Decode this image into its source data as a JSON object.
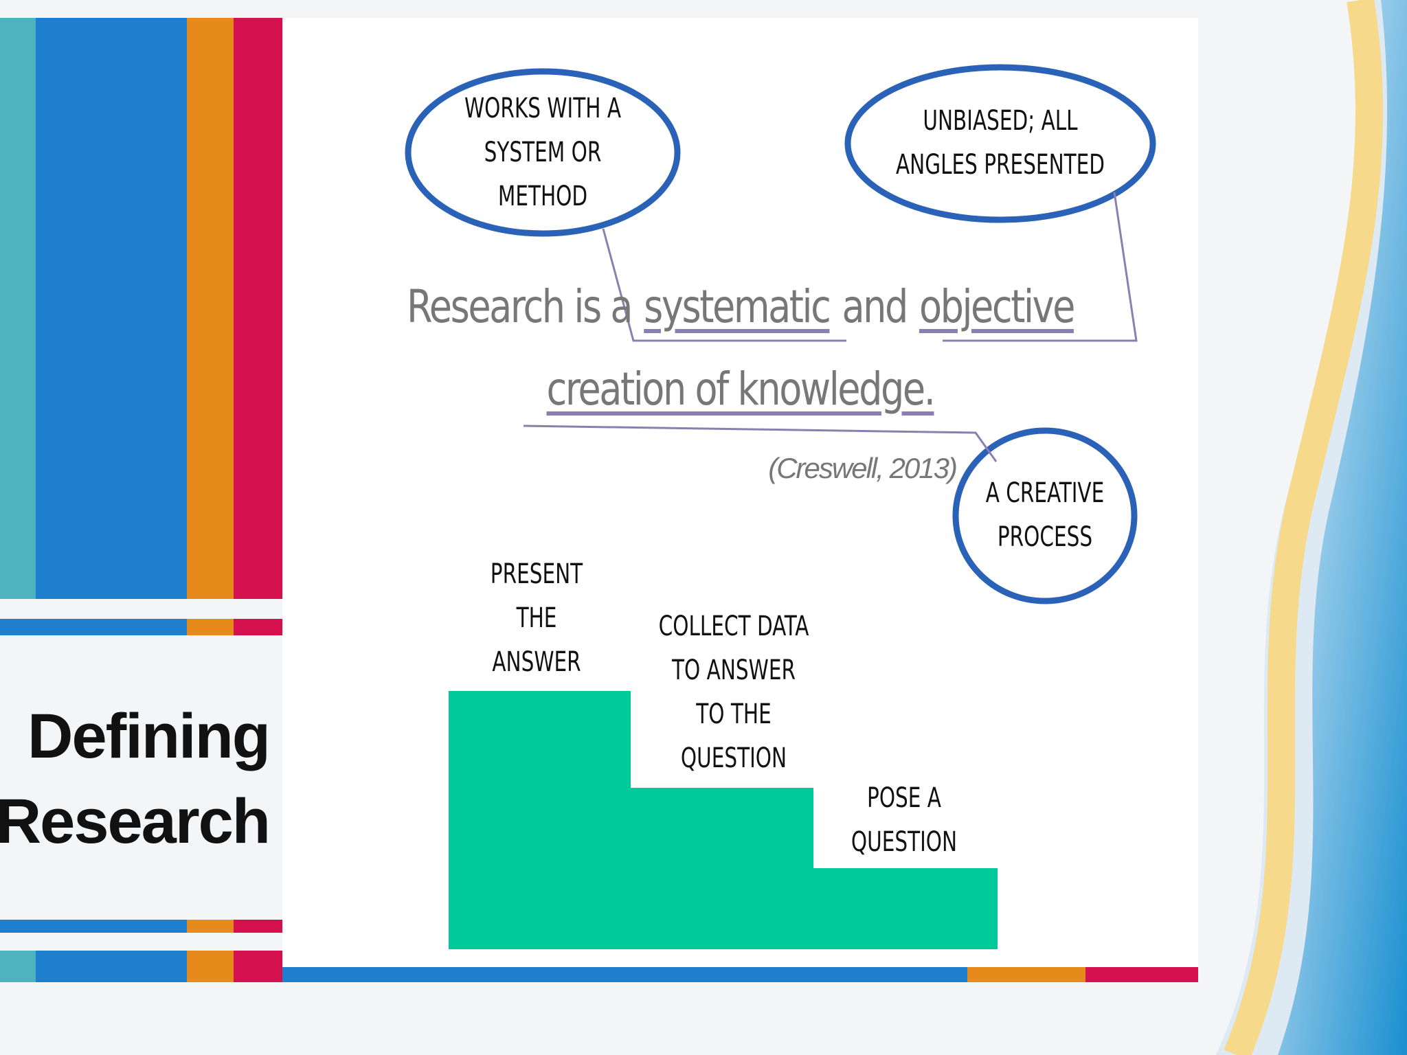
{
  "slide_title": [
    "Defining",
    "Research"
  ],
  "quote": {
    "line1": [
      "Research is a",
      "systematic",
      "and",
      "objective"
    ],
    "line2": "creation of knowledge.",
    "citation": "(Creswell, 2013)"
  },
  "callouts": [
    [
      "WORKS WITH A",
      "SYSTEM OR",
      "METHOD"
    ],
    [
      "UNBIASED; ALL",
      "ANGLES PRESENTED"
    ],
    [
      "A CREATIVE",
      "PROCESS"
    ]
  ],
  "steps": [
    [
      "PRESENT",
      "THE",
      "ANSWER"
    ],
    [
      "COLLECT DATA",
      "TO ANSWER",
      "TO THE",
      "QUESTION"
    ],
    [
      "POSE A",
      "QUESTION"
    ]
  ]
}
